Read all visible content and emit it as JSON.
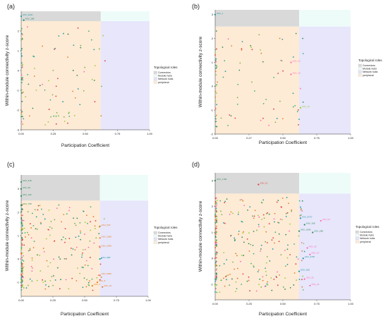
{
  "figure": {
    "colors": {
      "connectors": "#d9d9d9",
      "module_hubs": "#eefcf9",
      "network_hubs": "#e7e6fb",
      "peripheral": "#fdebd6",
      "points": [
        "#2e8b57",
        "#3cb371",
        "#e67e22",
        "#9acd32",
        "#ff69b4",
        "#1f9aa0",
        "#e53935",
        "#7cb342"
      ]
    },
    "legend": {
      "title": "Topological roles",
      "items": [
        {
          "key": "connectors",
          "label": "Connectors"
        },
        {
          "key": "module_hubs",
          "label": "Module hubs"
        },
        {
          "key": "network_hubs",
          "label": "Network hubs"
        },
        {
          "key": "peripheral",
          "label": "peripheral"
        }
      ]
    }
  },
  "chart_data": [
    {
      "type": "scatter",
      "panel": "(a)",
      "xlabel": "Participation Coefficient",
      "ylabel": "Within-module connectivity z-score",
      "xlim": [
        0,
        1
      ],
      "ylim": [
        -3,
        3
      ],
      "xticks": [
        "0.00",
        "0.25",
        "0.50",
        "0.75",
        "1.00"
      ],
      "yticks": [
        "-3",
        "-2",
        "-1",
        "0",
        "1",
        "2"
      ],
      "thresholds": {
        "x": 0.62,
        "y": 2.5
      },
      "annotations": [
        {
          "text": "ASV_3940",
          "x": 0.0,
          "y": 2.75,
          "color": "#1f9aa0"
        },
        {
          "text": "ASV_188",
          "x": 0.02,
          "y": 2.55,
          "color": "#2e8b57"
        }
      ]
    },
    {
      "type": "scatter",
      "panel": "(b)",
      "xlabel": "Participation Coefficient",
      "ylabel": "Within-module connectivity z-score",
      "xlim": [
        0,
        1
      ],
      "ylim": [
        -2,
        3.2
      ],
      "xticks": [
        "0.00",
        "0.27",
        "0.50",
        "0.75",
        "1.00"
      ],
      "yticks": [
        "-2",
        "-1",
        "0",
        "1",
        "2",
        "3"
      ],
      "thresholds": {
        "x": 0.62,
        "y": 2.5
      },
      "annotations": [
        {
          "text": "ASV_1",
          "x": 0.0,
          "y": 3.0,
          "color": "#1f9aa0"
        },
        {
          "text": "ASV_32",
          "x": 0.56,
          "y": 1.0,
          "color": "#ff69b4"
        },
        {
          "text": "ASV_18",
          "x": 0.56,
          "y": 0.5,
          "color": "#ff69b4"
        },
        {
          "text": "ASV_40",
          "x": 0.63,
          "y": -0.9,
          "color": "#9acd32"
        }
      ]
    },
    {
      "type": "scatter",
      "panel": "(c)",
      "xlabel": "Participation Coefficient",
      "ylabel": "Within-module connectivity z-score",
      "xlim": [
        0,
        1
      ],
      "ylim": [
        -1.6,
        3.6
      ],
      "xticks": [
        "0.00",
        "0.25",
        "0.50",
        "0.75",
        "1.00"
      ],
      "yticks": [
        "-1",
        "0",
        "1",
        "2",
        "3"
      ],
      "thresholds": {
        "x": 0.62,
        "y": 2.5
      },
      "annotations": [
        {
          "text": "ASV_618",
          "x": 0.0,
          "y": 3.3,
          "color": "#2e8b57"
        },
        {
          "text": "ASV_60",
          "x": 0.0,
          "y": 3.0,
          "color": "#2e8b57"
        },
        {
          "text": "ASV_192",
          "x": 0.0,
          "y": 2.7,
          "color": "#2e8b57"
        },
        {
          "text": "ASV_758",
          "x": 0.0,
          "y": 2.3,
          "color": "#2e8b57"
        },
        {
          "text": "ASV_518",
          "x": 0.62,
          "y": 1.4,
          "color": "#e67e22"
        },
        {
          "text": "ASV_1068",
          "x": 0.62,
          "y": 0.9,
          "color": "#e67e22"
        },
        {
          "text": "ASV_2048",
          "x": 0.62,
          "y": 0.5,
          "color": "#e67e22"
        },
        {
          "text": "ASV_588",
          "x": 0.62,
          "y": 0.0,
          "color": "#1f9aa0"
        },
        {
          "text": "ASV_5000",
          "x": 0.62,
          "y": -0.7,
          "color": "#e67e22"
        },
        {
          "text": "ASV_8",
          "x": 0.6,
          "y": -1.0,
          "color": "#e67e22"
        },
        {
          "text": "ASV_4",
          "x": 0.56,
          "y": -1.15,
          "color": "#e67e22"
        },
        {
          "text": "ASV_10",
          "x": 0.64,
          "y": -1.2,
          "color": "#e67e22"
        }
      ]
    },
    {
      "type": "scatter",
      "panel": "(d)",
      "xlabel": "Participation Coefficient",
      "ylabel": "Within-module connectivity z-score",
      "xlim": [
        0,
        1
      ],
      "ylim": [
        -1.6,
        3.3
      ],
      "xticks": [
        "0.00",
        "0.25",
        "0.50",
        "0.75",
        "1.00"
      ],
      "yticks": [
        "-1",
        "0",
        "1",
        "2",
        "3"
      ],
      "thresholds": {
        "x": 0.62,
        "y": 2.5
      },
      "annotations": [
        {
          "text": "ASV_1780",
          "x": 0.0,
          "y": 3.0,
          "color": "#2e8b57"
        },
        {
          "text": "ASV_21",
          "x": 0.32,
          "y": 2.85,
          "color": "#e53935"
        },
        {
          "text": "ASV_8770",
          "x": 0.63,
          "y": 1.55,
          "color": "#1f9aa0"
        },
        {
          "text": "ASV_168",
          "x": 0.66,
          "y": 1.3,
          "color": "#2e8b57"
        },
        {
          "text": "ASV_1096",
          "x": 0.62,
          "y": 1.05,
          "color": "#2e8b57"
        },
        {
          "text": "ASV_288",
          "x": 0.72,
          "y": 1.0,
          "color": "#2e8b57"
        },
        {
          "text": "ASV_54",
          "x": 0.78,
          "y": 1.45,
          "color": "#ff69b4"
        },
        {
          "text": "ASV_25",
          "x": 0.68,
          "y": 0.4,
          "color": "#ff69b4"
        },
        {
          "text": "ASV_2750",
          "x": 0.65,
          "y": 0.0,
          "color": "#1f9aa0"
        },
        {
          "text": "ASV_47",
          "x": 0.7,
          "y": 0.15,
          "color": "#ff69b4"
        },
        {
          "text": "ASV_208",
          "x": 0.62,
          "y": -0.5,
          "color": "#1f9aa0"
        },
        {
          "text": "ASV_32",
          "x": 0.66,
          "y": -0.8,
          "color": "#ff69b4"
        },
        {
          "text": "ASV_24",
          "x": 0.7,
          "y": -1.05,
          "color": "#ff69b4"
        }
      ]
    }
  ]
}
